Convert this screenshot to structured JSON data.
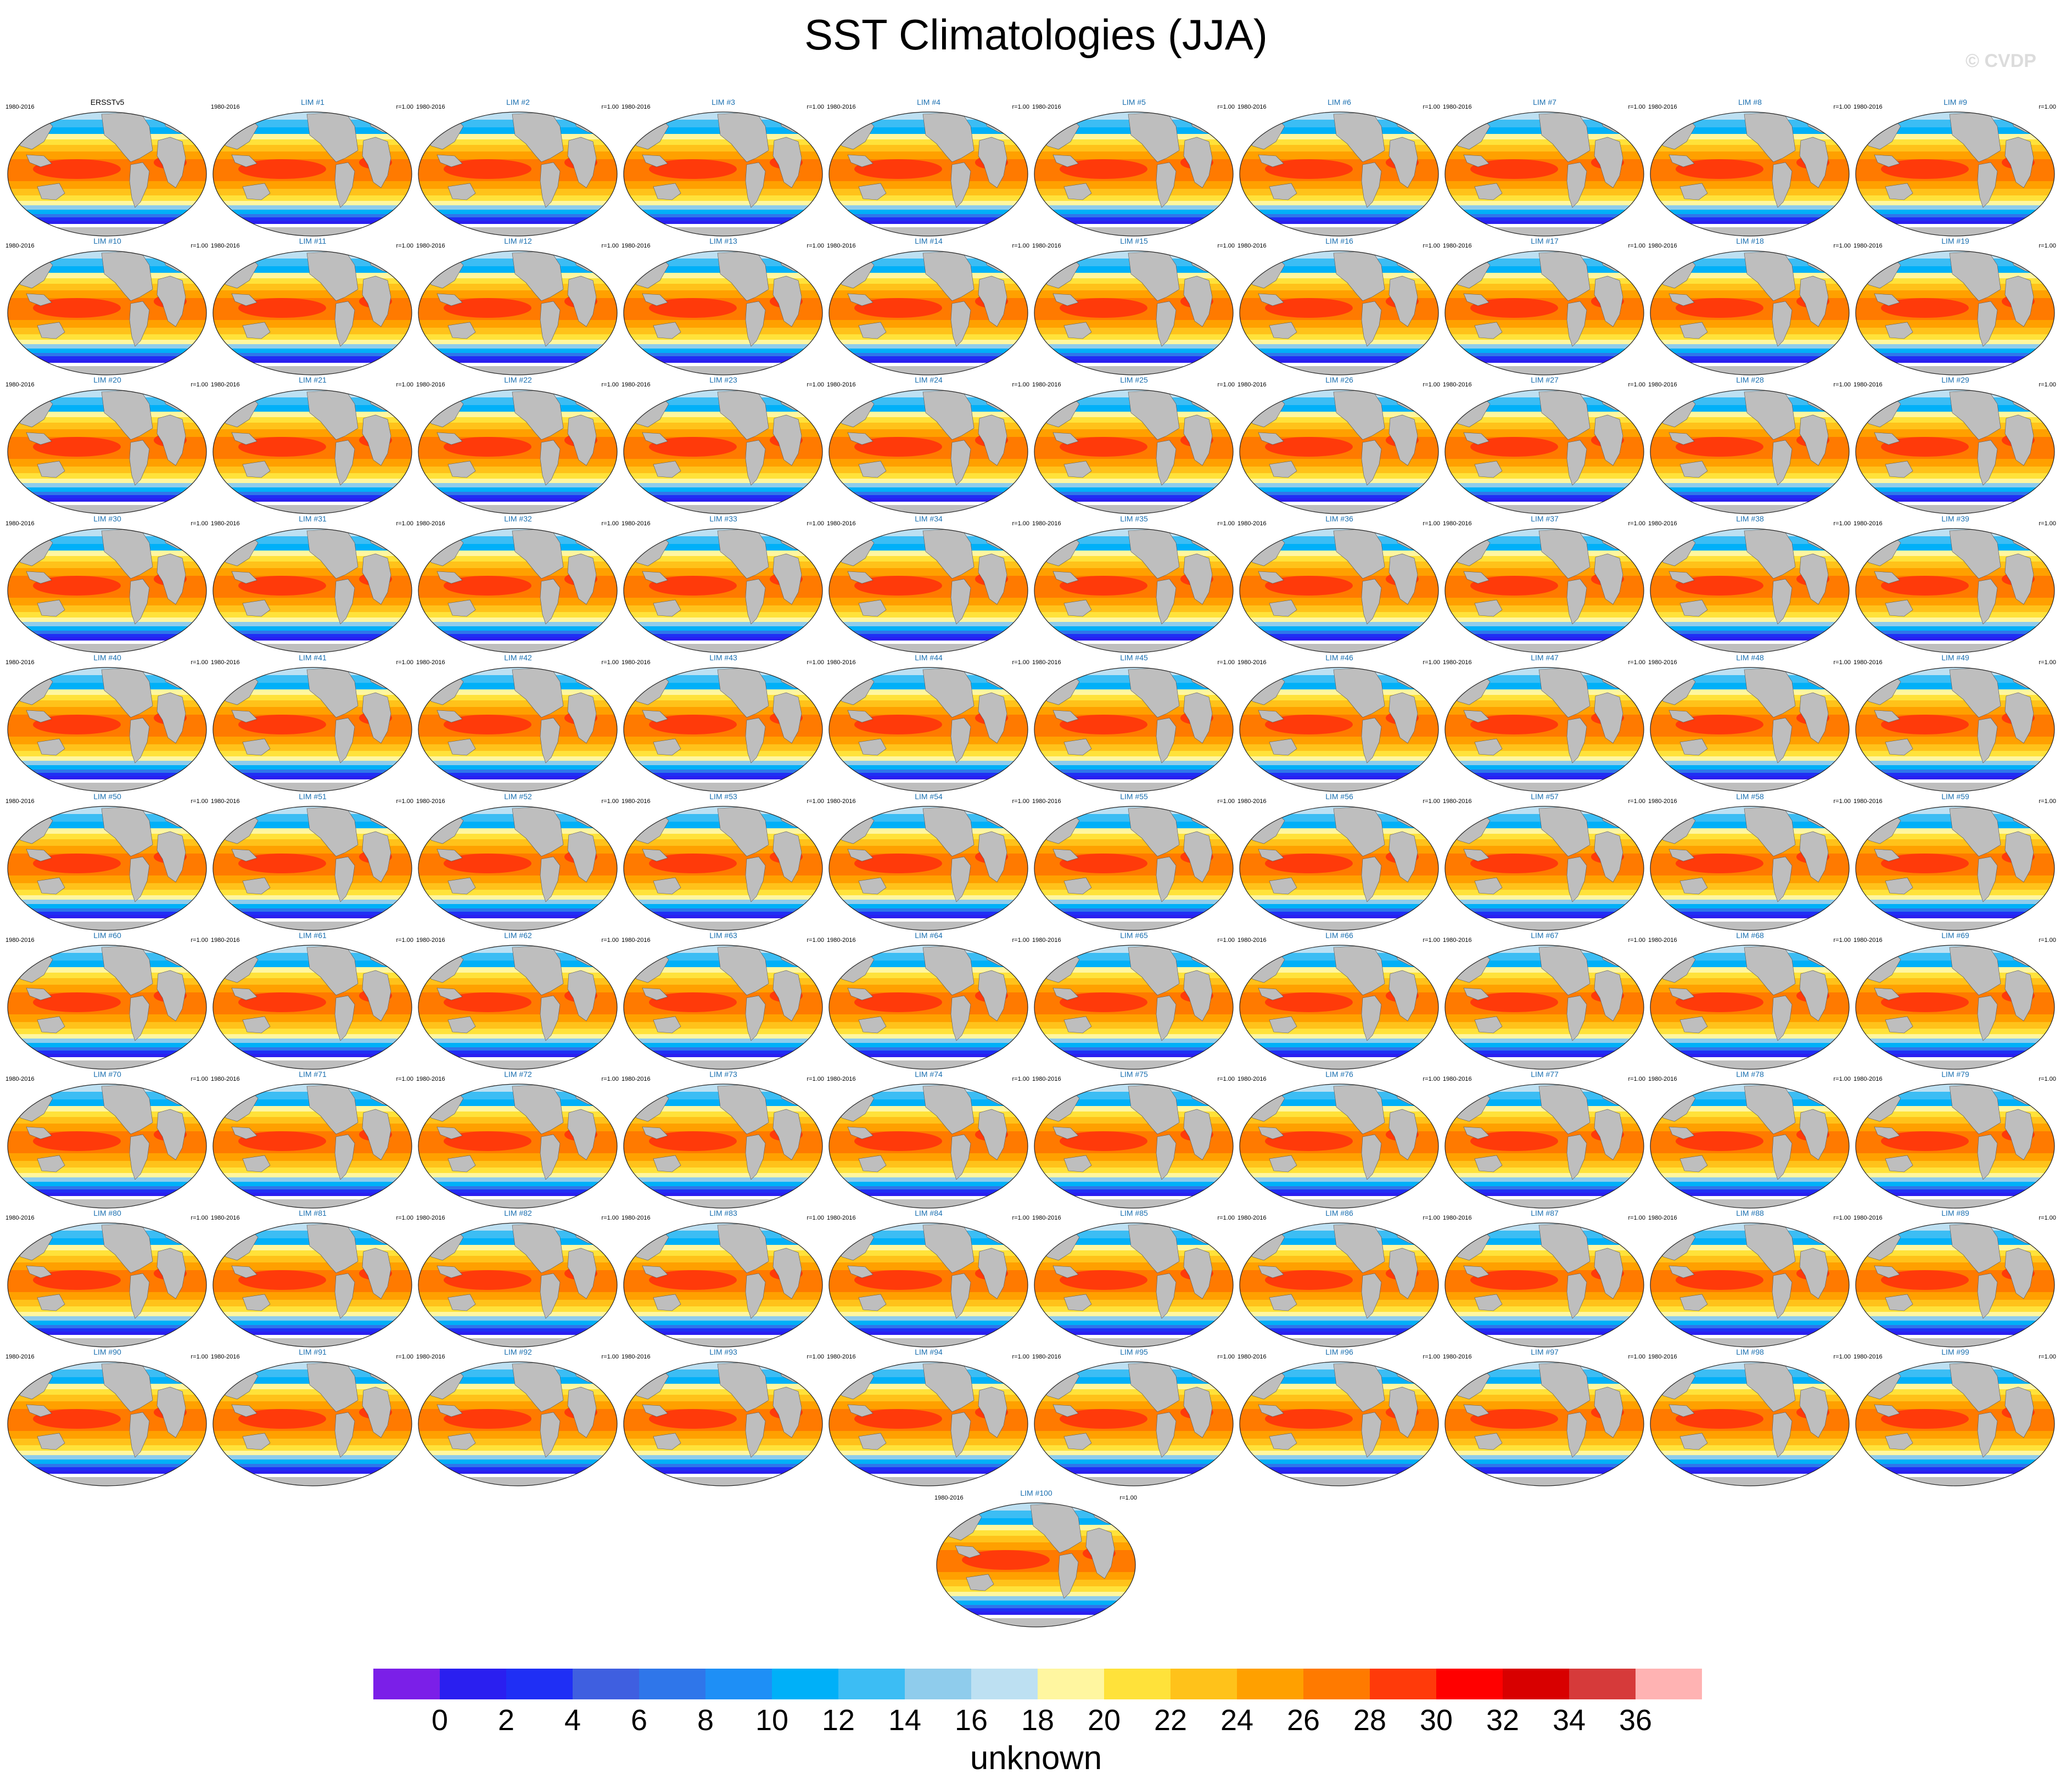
{
  "title": "SST Climatologies (JJA)",
  "watermark": "© CVDP",
  "panel_years": "1980-2016",
  "panel_corr": "r=1.00",
  "colors": {
    "panel_title_obs": "#000000",
    "panel_title_model": "#1a6fb0",
    "land": "#bebebe",
    "ice": "#ffffff"
  },
  "chart_data": {
    "type": "heatmap",
    "title": "SST Climatologies (JJA)",
    "panels": [
      "ERSSTv5",
      "LIM #1",
      "LIM #2",
      "LIM #3",
      "LIM #4",
      "LIM #5",
      "LIM #6",
      "LIM #7",
      "LIM #8",
      "LIM #9",
      "LIM #10",
      "LIM #11",
      "LIM #12",
      "LIM #13",
      "LIM #14",
      "LIM #15",
      "LIM #16",
      "LIM #17",
      "LIM #18",
      "LIM #19",
      "LIM #20",
      "LIM #21",
      "LIM #22",
      "LIM #23",
      "LIM #24",
      "LIM #25",
      "LIM #26",
      "LIM #27",
      "LIM #28",
      "LIM #29",
      "LIM #30",
      "LIM #31",
      "LIM #32",
      "LIM #33",
      "LIM #34",
      "LIM #35",
      "LIM #36",
      "LIM #37",
      "LIM #38",
      "LIM #39",
      "LIM #40",
      "LIM #41",
      "LIM #42",
      "LIM #43",
      "LIM #44",
      "LIM #45",
      "LIM #46",
      "LIM #47",
      "LIM #48",
      "LIM #49",
      "LIM #50",
      "LIM #51",
      "LIM #52",
      "LIM #53",
      "LIM #54",
      "LIM #55",
      "LIM #56",
      "LIM #57",
      "LIM #58",
      "LIM #59",
      "LIM #60",
      "LIM #61",
      "LIM #62",
      "LIM #63",
      "LIM #64",
      "LIM #65",
      "LIM #66",
      "LIM #67",
      "LIM #68",
      "LIM #69",
      "LIM #70",
      "LIM #71",
      "LIM #72",
      "LIM #73",
      "LIM #74",
      "LIM #75",
      "LIM #76",
      "LIM #77",
      "LIM #78",
      "LIM #79",
      "LIM #80",
      "LIM #81",
      "LIM #82",
      "LIM #83",
      "LIM #84",
      "LIM #85",
      "LIM #86",
      "LIM #87",
      "LIM #88",
      "LIM #89",
      "LIM #90",
      "LIM #91",
      "LIM #92",
      "LIM #93",
      "LIM #94",
      "LIM #95",
      "LIM #96",
      "LIM #97",
      "LIM #98",
      "LIM #99",
      "LIM #100"
    ],
    "colorbar": {
      "ticks": [
        "0",
        "2",
        "4",
        "6",
        "8",
        "10",
        "12",
        "14",
        "16",
        "18",
        "20",
        "22",
        "24",
        "26",
        "28",
        "30",
        "32",
        "34",
        "36"
      ],
      "colors": [
        "#7b1fe8",
        "#2a1ff0",
        "#1f2ff5",
        "#3f5fe0",
        "#2f76ea",
        "#1e8ff6",
        "#00b0f8",
        "#3cbdf4",
        "#8fccec",
        "#bde0f2",
        "#fff6a0",
        "#ffe23a",
        "#ffc21a",
        "#ffa000",
        "#ff7a00",
        "#ff3a0a",
        "#ff0000",
        "#d80000",
        "#d63a3a",
        "#ffb3b3"
      ],
      "units": "unknown"
    }
  }
}
